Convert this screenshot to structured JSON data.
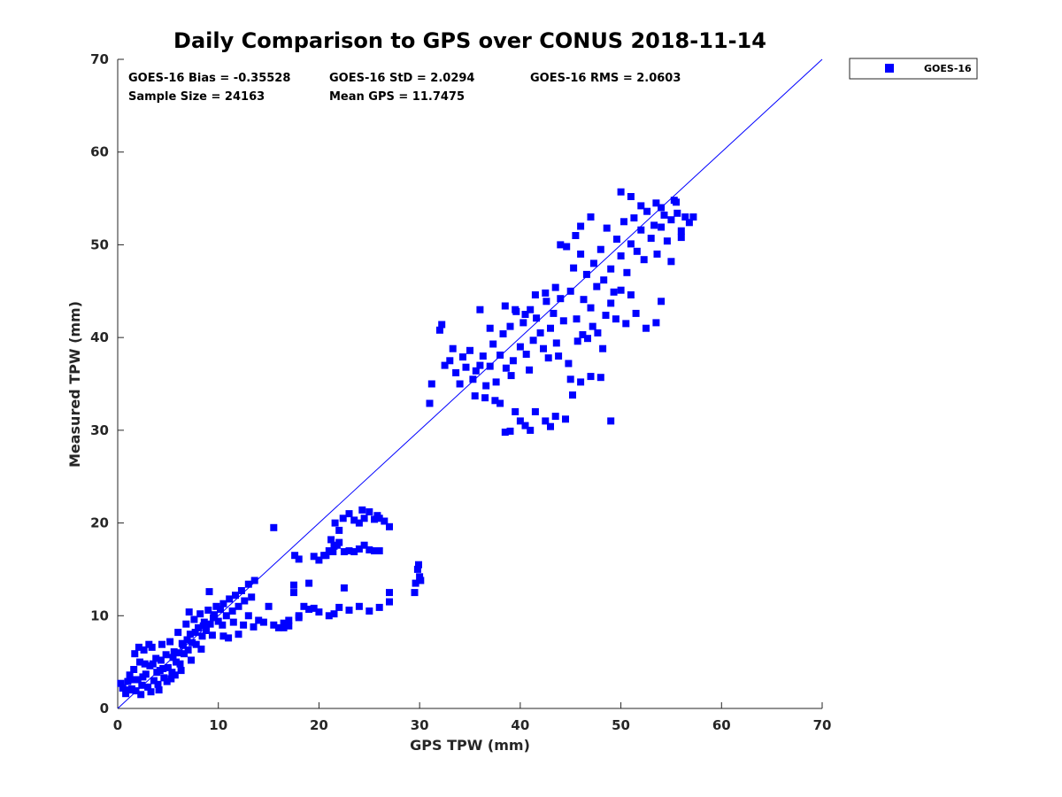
{
  "chart_data": {
    "type": "scatter",
    "title": "Daily Comparison to GPS over CONUS 2018-11-14",
    "xlabel": "GPS TPW (mm)",
    "ylabel": "Measured TPW (mm)",
    "xlim": [
      0,
      70
    ],
    "ylim": [
      0,
      70
    ],
    "xticks": [
      "0",
      "10",
      "20",
      "30",
      "40",
      "50",
      "60",
      "70"
    ],
    "yticks": [
      "0",
      "10",
      "20",
      "30",
      "40",
      "50",
      "60",
      "70"
    ],
    "grid": false,
    "legend_position": "outside-top-right",
    "stats": {
      "bias": "GOES-16 Bias = -0.35528",
      "std": "GOES-16 StD = 2.0294",
      "rms": "GOES-16 RMS = 2.0603",
      "sample_size": "Sample Size = 24163",
      "mean_gps": "Mean GPS = 11.7475"
    },
    "reference_line": {
      "name": "1:1 line",
      "from": [
        0,
        0
      ],
      "to": [
        70,
        70
      ],
      "color": "#0000ff"
    },
    "series": [
      {
        "name": "GOES-16",
        "color": "#0000ff",
        "marker": "square",
        "points": [
          [
            0.5,
            2.2
          ],
          [
            0.8,
            1.6
          ],
          [
            1.0,
            2.9
          ],
          [
            1.2,
            3.6
          ],
          [
            1.4,
            2.1
          ],
          [
            1.6,
            4.2
          ],
          [
            1.8,
            1.9
          ],
          [
            2.0,
            3.1
          ],
          [
            2.2,
            5.0
          ],
          [
            2.4,
            2.5
          ],
          [
            2.6,
            6.3
          ],
          [
            2.8,
            3.7
          ],
          [
            3.0,
            2.3
          ],
          [
            3.2,
            4.6
          ],
          [
            3.4,
            6.6
          ],
          [
            3.6,
            3.0
          ],
          [
            3.8,
            5.4
          ],
          [
            4.0,
            2.6
          ],
          [
            4.2,
            4.1
          ],
          [
            4.4,
            6.9
          ],
          [
            4.6,
            3.3
          ],
          [
            4.8,
            5.8
          ],
          [
            5.0,
            4.4
          ],
          [
            5.2,
            7.2
          ],
          [
            5.4,
            3.9
          ],
          [
            5.6,
            6.1
          ],
          [
            5.8,
            5.0
          ],
          [
            6.0,
            8.2
          ],
          [
            6.2,
            4.8
          ],
          [
            6.4,
            7.0
          ],
          [
            6.6,
            5.9
          ],
          [
            6.8,
            9.1
          ],
          [
            7.0,
            6.3
          ],
          [
            7.2,
            8.0
          ],
          [
            7.4,
            7.1
          ],
          [
            7.6,
            9.6
          ],
          [
            7.8,
            6.9
          ],
          [
            8.0,
            8.7
          ],
          [
            8.2,
            10.2
          ],
          [
            8.4,
            7.8
          ],
          [
            8.6,
            9.3
          ],
          [
            8.8,
            8.4
          ],
          [
            9.0,
            10.6
          ],
          [
            9.2,
            9.1
          ],
          [
            9.4,
            7.9
          ],
          [
            9.6,
            10.1
          ],
          [
            9.8,
            11.0
          ],
          [
            10.0,
            9.4
          ],
          [
            10.2,
            10.7
          ],
          [
            10.5,
            11.3
          ],
          [
            10.8,
            10.0
          ],
          [
            11.1,
            11.8
          ],
          [
            11.4,
            10.5
          ],
          [
            11.7,
            12.2
          ],
          [
            12.0,
            11.0
          ],
          [
            12.3,
            12.7
          ],
          [
            12.6,
            11.6
          ],
          [
            13.0,
            13.4
          ],
          [
            13.3,
            12.0
          ],
          [
            13.6,
            13.8
          ],
          [
            2.1,
            6.6
          ],
          [
            1.7,
            5.9
          ],
          [
            3.1,
            6.9
          ],
          [
            4.3,
            5.2
          ],
          [
            5.3,
            3.2
          ],
          [
            6.3,
            4.1
          ],
          [
            7.3,
            5.2
          ],
          [
            8.3,
            6.4
          ],
          [
            9.1,
            12.6
          ],
          [
            7.1,
            10.4
          ],
          [
            0.3,
            2.7
          ],
          [
            1.1,
            2.0
          ],
          [
            2.3,
            1.5
          ],
          [
            3.3,
            1.8
          ],
          [
            4.1,
            2.0
          ],
          [
            4.9,
            2.9
          ],
          [
            5.7,
            3.6
          ],
          [
            6.5,
            6.8
          ],
          [
            2.7,
            4.8
          ],
          [
            3.9,
            3.9
          ],
          [
            1.5,
            3.1
          ],
          [
            2.5,
            3.4
          ],
          [
            3.5,
            4.8
          ],
          [
            4.5,
            4.3
          ],
          [
            5.5,
            5.5
          ],
          [
            6.1,
            6.0
          ],
          [
            6.9,
            7.4
          ],
          [
            7.7,
            8.2
          ],
          [
            8.5,
            8.9
          ],
          [
            9.5,
            9.8
          ],
          [
            10.4,
            9.0
          ],
          [
            11.5,
            9.3
          ],
          [
            12.5,
            9.0
          ],
          [
            13.5,
            8.8
          ],
          [
            14.5,
            9.3
          ],
          [
            15.5,
            9.0
          ],
          [
            16.0,
            8.7
          ],
          [
            17.0,
            9.5
          ],
          [
            18.0,
            10.0
          ],
          [
            19.0,
            10.7
          ],
          [
            20.0,
            10.4
          ],
          [
            21.0,
            10.0
          ],
          [
            22.0,
            10.9
          ],
          [
            23.0,
            10.6
          ],
          [
            24.0,
            11.0
          ],
          [
            25.0,
            10.5
          ],
          [
            26.0,
            10.9
          ],
          [
            27.0,
            11.5
          ],
          [
            27.0,
            12.5
          ],
          [
            12.0,
            8.0
          ],
          [
            11.0,
            7.6
          ],
          [
            10.5,
            7.8
          ],
          [
            13.0,
            10.0
          ],
          [
            14.0,
            9.5
          ],
          [
            15.0,
            11.0
          ],
          [
            15.5,
            19.5
          ],
          [
            16.5,
            8.7
          ],
          [
            17.5,
            12.5
          ],
          [
            18.5,
            11.0
          ],
          [
            19.0,
            13.5
          ],
          [
            17.5,
            13.3
          ],
          [
            22.5,
            13.0
          ],
          [
            18.0,
            9.8
          ],
          [
            16.5,
            9.2
          ],
          [
            19.5,
            10.8
          ],
          [
            17.0,
            8.9
          ],
          [
            21.5,
            10.2
          ],
          [
            17.6,
            16.5
          ],
          [
            18.0,
            16.1
          ],
          [
            19.5,
            16.4
          ],
          [
            20.0,
            16.0
          ],
          [
            20.5,
            16.5
          ],
          [
            21.0,
            17.0
          ],
          [
            21.5,
            17.5
          ],
          [
            22.0,
            17.9
          ],
          [
            22.5,
            16.9
          ],
          [
            23.0,
            17.0
          ],
          [
            23.5,
            16.9
          ],
          [
            24.0,
            17.2
          ],
          [
            24.5,
            17.6
          ],
          [
            25.0,
            17.1
          ],
          [
            25.5,
            17.0
          ],
          [
            26.0,
            17.0
          ],
          [
            20.7,
            16.5
          ],
          [
            21.4,
            16.9
          ],
          [
            21.6,
            20.0
          ],
          [
            22.0,
            19.2
          ],
          [
            22.4,
            20.5
          ],
          [
            23.0,
            21.0
          ],
          [
            23.5,
            20.3
          ],
          [
            24.0,
            20.0
          ],
          [
            24.5,
            20.5
          ],
          [
            25.0,
            21.2
          ],
          [
            25.5,
            20.4
          ],
          [
            26.0,
            20.5
          ],
          [
            26.5,
            20.2
          ],
          [
            27.0,
            19.6
          ],
          [
            24.3,
            21.4
          ],
          [
            25.8,
            20.8
          ],
          [
            21.2,
            18.2
          ],
          [
            21.8,
            17.6
          ],
          [
            29.5,
            12.5
          ],
          [
            29.6,
            13.5
          ],
          [
            29.8,
            15.0
          ],
          [
            30.0,
            14.2
          ],
          [
            30.1,
            13.8
          ],
          [
            29.9,
            15.5
          ],
          [
            31.0,
            32.9
          ],
          [
            31.2,
            35.0
          ],
          [
            32.0,
            40.8
          ],
          [
            32.2,
            41.4
          ],
          [
            32.5,
            37.0
          ],
          [
            33.0,
            37.5
          ],
          [
            33.3,
            38.8
          ],
          [
            33.6,
            36.2
          ],
          [
            34.0,
            35.0
          ],
          [
            34.3,
            37.9
          ],
          [
            34.6,
            36.8
          ],
          [
            35.0,
            38.6
          ],
          [
            35.3,
            35.5
          ],
          [
            35.6,
            36.4
          ],
          [
            36.0,
            37.0
          ],
          [
            36.3,
            38.0
          ],
          [
            36.6,
            34.8
          ],
          [
            37.0,
            36.9
          ],
          [
            37.3,
            39.3
          ],
          [
            37.6,
            35.2
          ],
          [
            38.0,
            38.1
          ],
          [
            38.3,
            40.4
          ],
          [
            38.6,
            36.7
          ],
          [
            39.0,
            41.2
          ],
          [
            39.3,
            37.5
          ],
          [
            39.6,
            42.8
          ],
          [
            40.0,
            39.0
          ],
          [
            40.3,
            41.6
          ],
          [
            40.6,
            38.2
          ],
          [
            41.0,
            43.0
          ],
          [
            41.3,
            39.7
          ],
          [
            41.6,
            42.1
          ],
          [
            42.0,
            40.5
          ],
          [
            42.3,
            38.8
          ],
          [
            42.6,
            43.9
          ],
          [
            43.0,
            41.0
          ],
          [
            43.3,
            42.6
          ],
          [
            43.6,
            39.4
          ],
          [
            44.0,
            44.2
          ],
          [
            44.3,
            41.8
          ],
          [
            35.5,
            33.7
          ],
          [
            36.5,
            33.5
          ],
          [
            37.5,
            33.2
          ],
          [
            38.0,
            32.9
          ],
          [
            38.5,
            29.8
          ],
          [
            39.0,
            29.9
          ],
          [
            39.5,
            32.0
          ],
          [
            40.0,
            31.0
          ],
          [
            40.5,
            30.5
          ],
          [
            41.0,
            30.0
          ],
          [
            41.5,
            32.0
          ],
          [
            42.5,
            31.0
          ],
          [
            43.0,
            30.4
          ],
          [
            43.5,
            31.5
          ],
          [
            44.5,
            31.2
          ],
          [
            45.0,
            35.5
          ],
          [
            46.0,
            35.2
          ],
          [
            47.0,
            35.8
          ],
          [
            48.0,
            35.7
          ],
          [
            49.0,
            31.0
          ],
          [
            36.0,
            43.0
          ],
          [
            37.0,
            41.0
          ],
          [
            38.5,
            43.4
          ],
          [
            39.5,
            43.0
          ],
          [
            40.5,
            42.5
          ],
          [
            41.5,
            44.6
          ],
          [
            42.5,
            44.8
          ],
          [
            43.5,
            45.4
          ],
          [
            39.1,
            35.9
          ],
          [
            40.9,
            36.5
          ],
          [
            44.6,
            49.8
          ],
          [
            45.0,
            45.0
          ],
          [
            45.3,
            47.5
          ],
          [
            45.6,
            42.0
          ],
          [
            46.0,
            49.0
          ],
          [
            46.3,
            44.1
          ],
          [
            46.6,
            46.8
          ],
          [
            47.0,
            43.2
          ],
          [
            47.3,
            48.0
          ],
          [
            47.6,
            45.5
          ],
          [
            48.0,
            49.5
          ],
          [
            48.3,
            46.2
          ],
          [
            48.6,
            51.8
          ],
          [
            49.0,
            47.4
          ],
          [
            49.3,
            44.9
          ],
          [
            49.6,
            50.6
          ],
          [
            50.0,
            48.8
          ],
          [
            50.3,
            52.5
          ],
          [
            50.6,
            47.0
          ],
          [
            51.0,
            50.1
          ],
          [
            51.3,
            52.9
          ],
          [
            51.6,
            49.3
          ],
          [
            52.0,
            51.6
          ],
          [
            52.3,
            48.4
          ],
          [
            52.6,
            53.6
          ],
          [
            53.0,
            50.7
          ],
          [
            53.3,
            52.1
          ],
          [
            53.6,
            49.0
          ],
          [
            54.0,
            51.9
          ],
          [
            54.3,
            53.2
          ],
          [
            54.6,
            50.4
          ],
          [
            55.0,
            52.7
          ],
          [
            55.3,
            54.8
          ],
          [
            55.6,
            53.4
          ],
          [
            56.0,
            51.5
          ],
          [
            56.4,
            53.0
          ],
          [
            56.8,
            52.4
          ],
          [
            57.2,
            53.0
          ],
          [
            56.0,
            50.8
          ],
          [
            55.0,
            48.2
          ],
          [
            50.0,
            55.7
          ],
          [
            51.0,
            55.2
          ],
          [
            52.0,
            54.2
          ],
          [
            53.5,
            54.5
          ],
          [
            54.0,
            54.0
          ],
          [
            55.5,
            54.6
          ],
          [
            47.0,
            53.0
          ],
          [
            46.0,
            52.0
          ],
          [
            45.5,
            51.0
          ],
          [
            44.0,
            50.0
          ],
          [
            48.5,
            42.4
          ],
          [
            49.5,
            42.0
          ],
          [
            50.5,
            41.5
          ],
          [
            51.5,
            42.6
          ],
          [
            52.5,
            41.0
          ],
          [
            53.5,
            41.6
          ],
          [
            54.0,
            43.9
          ],
          [
            51.0,
            44.6
          ],
          [
            50.0,
            45.1
          ],
          [
            49.0,
            43.7
          ],
          [
            45.7,
            39.6
          ],
          [
            46.2,
            40.3
          ],
          [
            46.7,
            39.9
          ],
          [
            47.2,
            41.2
          ],
          [
            47.7,
            40.5
          ],
          [
            48.2,
            38.8
          ],
          [
            43.8,
            38.0
          ],
          [
            44.8,
            37.2
          ],
          [
            42.8,
            37.8
          ],
          [
            45.2,
            33.8
          ]
        ]
      }
    ]
  },
  "legend": {
    "entries": [
      "GOES-16"
    ]
  }
}
